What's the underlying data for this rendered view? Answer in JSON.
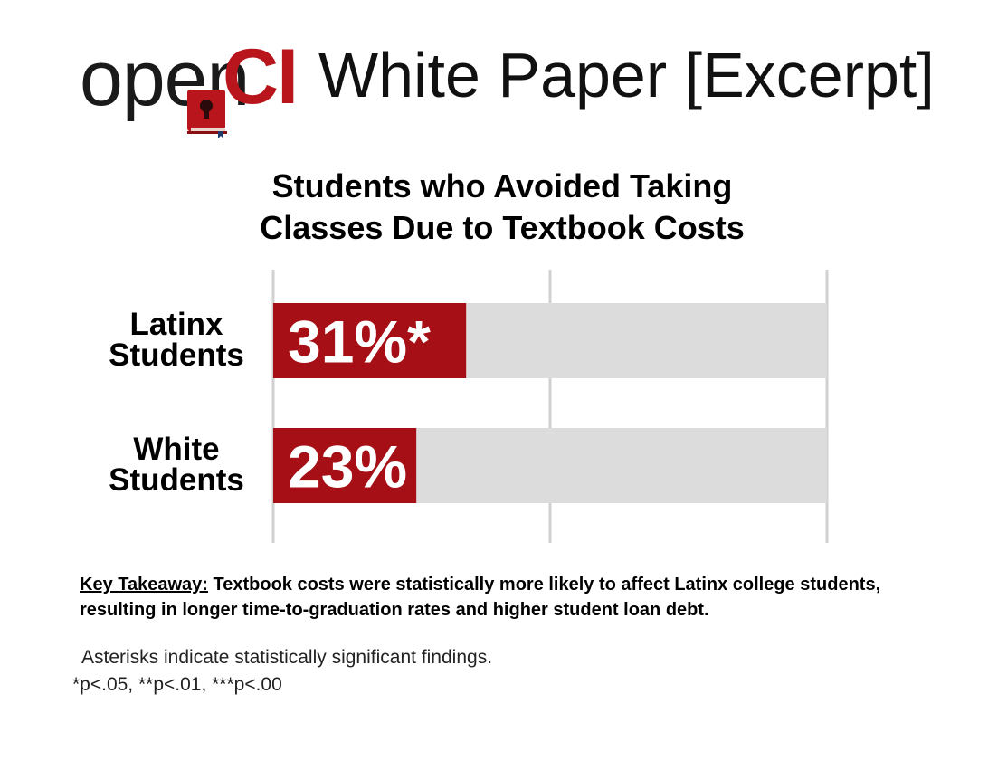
{
  "header": {
    "logo_open": "open",
    "logo_ci": "CI",
    "title": "White Paper [Excerpt]"
  },
  "chart_data": {
    "type": "bar",
    "orientation": "horizontal",
    "title": "Students who Avoided Taking Classes Due to Textbook Costs",
    "title_lines": [
      "Students who Avoided Taking",
      "Classes Due to Textbook Costs"
    ],
    "categories": [
      "Latinx Students",
      "White Students"
    ],
    "category_lines": [
      [
        "Latinx",
        "Students"
      ],
      [
        "White",
        "Students"
      ]
    ],
    "values": [
      31,
      23
    ],
    "data_labels": [
      "31%*",
      "23%"
    ],
    "xlim": [
      0,
      89
    ],
    "grid": true,
    "colors": {
      "bar": "#a50f15",
      "background_bar": "#dcdcdc",
      "grid": "#d0d0d0"
    }
  },
  "takeaway": {
    "key_label": "Key Takeaway:",
    "text": "Textbook costs were statistically more likely to affect Latinx college students, resulting in longer time-to-graduation rates and higher student loan debt."
  },
  "notes": {
    "line1": "Asterisks indicate statistically significant findings.",
    "line2": "*p<.05, **p<.01, ***p<.00"
  }
}
